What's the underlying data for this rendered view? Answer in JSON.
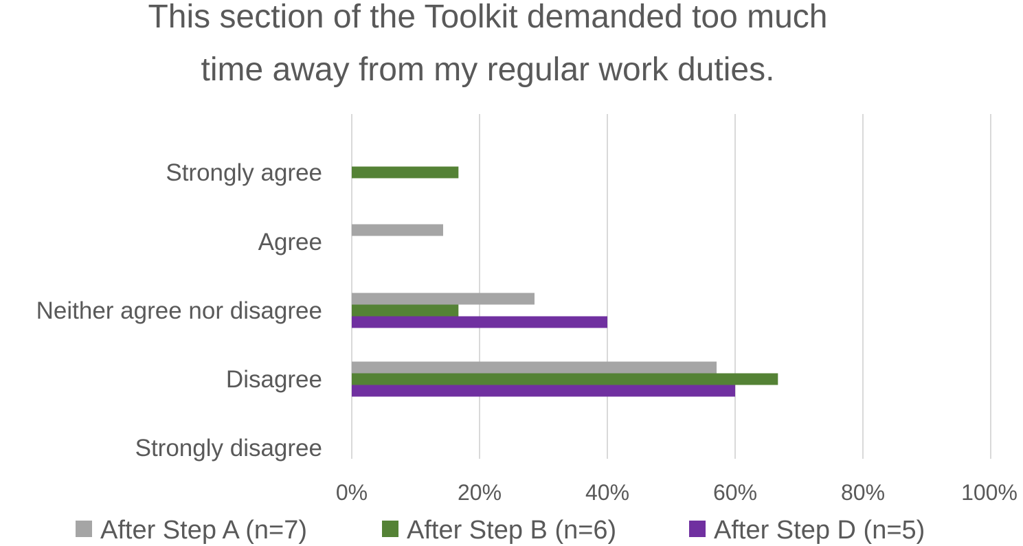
{
  "chart_data": {
    "type": "bar",
    "orientation": "horizontal",
    "title_lines": [
      "This section of the Toolkit demanded too much",
      "time away from my regular work duties."
    ],
    "categories": [
      "Strongly agree",
      "Agree",
      "Neither agree nor disagree",
      "Disagree",
      "Strongly disagree"
    ],
    "series": [
      {
        "name": "After Step A (n=7)",
        "color": "#a5a5a5",
        "values": [
          0,
          14.3,
          28.6,
          57.1,
          0
        ]
      },
      {
        "name": "After Step B (n=6)",
        "color": "#548235",
        "values": [
          16.7,
          0,
          16.7,
          66.7,
          0
        ]
      },
      {
        "name": "After Step D (n=5)",
        "color": "#7030a0",
        "values": [
          0,
          0,
          40,
          60,
          0
        ]
      }
    ],
    "x_ticks": [
      "0%",
      "20%",
      "40%",
      "60%",
      "80%",
      "100%"
    ],
    "xlim": [
      0,
      100
    ],
    "xlabel": "",
    "ylabel": "",
    "grid": "vertical",
    "legend_position": "bottom"
  }
}
